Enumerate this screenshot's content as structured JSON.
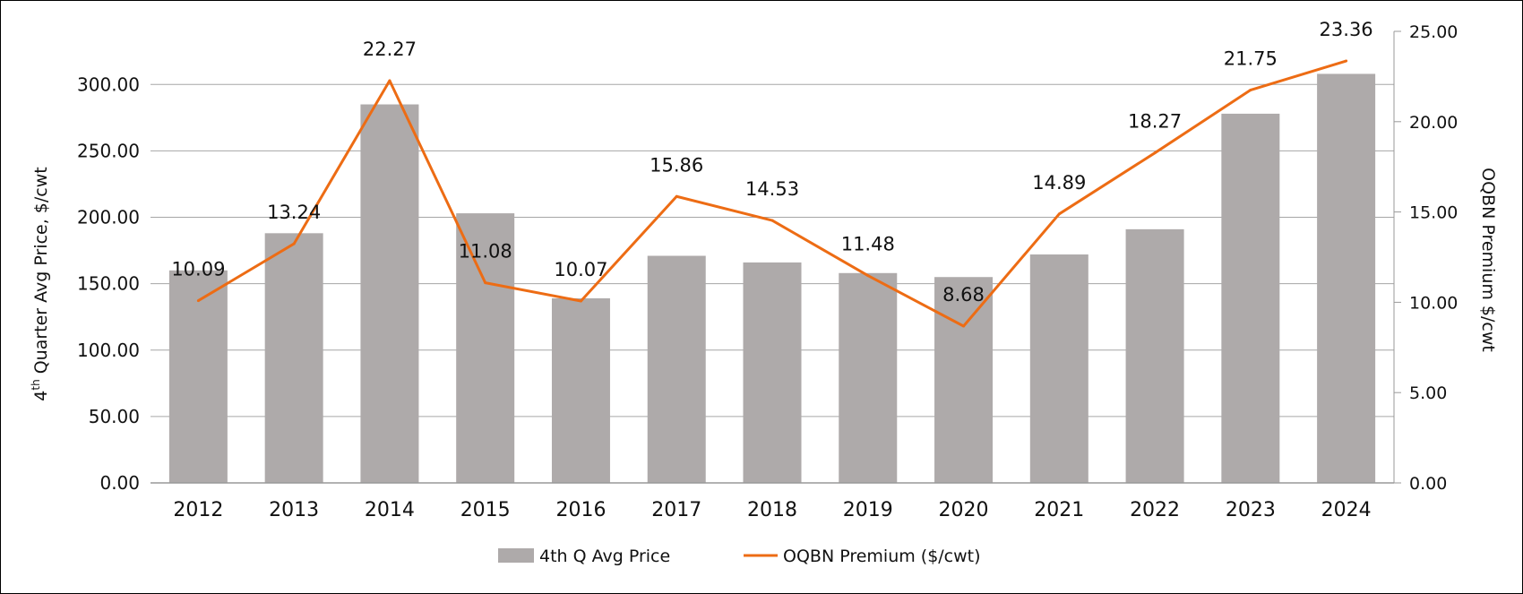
{
  "chart_data": {
    "type": "bar+line",
    "categories": [
      "2012",
      "2013",
      "2014",
      "2015",
      "2016",
      "2017",
      "2018",
      "2019",
      "2020",
      "2021",
      "2022",
      "2023",
      "2024"
    ],
    "series": [
      {
        "name": "4th Q Avg Price",
        "type": "bar",
        "axis": "left",
        "color": "#aeaaaa",
        "values": [
          160,
          188,
          285,
          203,
          139,
          171,
          166,
          158,
          155,
          172,
          191,
          278,
          308
        ]
      },
      {
        "name": "OQBN Premium ($/cwt)",
        "type": "line",
        "axis": "right",
        "color": "#ed6c14",
        "values": [
          10.09,
          13.24,
          22.27,
          11.08,
          10.07,
          15.86,
          14.53,
          11.48,
          8.68,
          14.89,
          18.27,
          21.75,
          23.36
        ],
        "labels": [
          "10.09",
          "13.24",
          "22.27",
          "11.08",
          "10.07",
          "15.86",
          "14.53",
          "11.48",
          "8.68",
          "14.89",
          "18.27",
          "21.75",
          "23.36"
        ]
      }
    ],
    "ylabel_left": {
      "main": "4",
      "sup": "th",
      "rest": " Quarter Avg Price, $/cwt"
    },
    "ylabel_right": "OQBN Premium $/cwt",
    "ylim_left": [
      0,
      340
    ],
    "ylim_right": [
      0,
      25
    ],
    "yticks_left": [
      "0.00",
      "50.00",
      "100.00",
      "150.00",
      "200.00",
      "250.00",
      "300.00"
    ],
    "yticks_right": [
      "0.00",
      "5.00",
      "10.00",
      "15.00",
      "20.00",
      "25.00"
    ],
    "grid": true,
    "legend_position": "bottom",
    "gridline_color": "#a6a6a6"
  }
}
